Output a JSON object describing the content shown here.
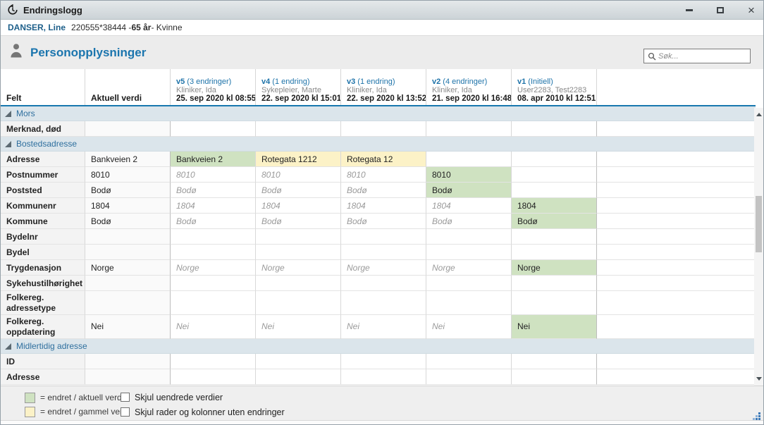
{
  "window": {
    "title": "Endringslogg",
    "close_glyph": "×"
  },
  "patient": {
    "name": "DANSER, Line",
    "id": "220555*38444 - ",
    "age": "65 år",
    "rest": " - Kvinne"
  },
  "header": {
    "title": "Personopplysninger",
    "search_placeholder": "Søk..."
  },
  "table": {
    "felt_label": "Felt",
    "aktuell_label": "Aktuell verdi",
    "version_columns": [
      {
        "version": "v5",
        "count": "(3 endringer)",
        "author": "Kliniker, Ida",
        "date": "25. sep 2020 kl 08:55"
      },
      {
        "version": "v4",
        "count": "(1 endring)",
        "author": "Sykepleier, Marte",
        "date": "22. sep 2020 kl 15:01"
      },
      {
        "version": "v3",
        "count": "(1 endring)",
        "author": "Kliniker, Ida",
        "date": "22. sep 2020 kl 13:52"
      },
      {
        "version": "v2",
        "count": "(4 endringer)",
        "author": "Kliniker, Ida",
        "date": "21. sep 2020 kl 16:48"
      },
      {
        "version": "v1",
        "count": "(Initiell)",
        "author": "User2283, Test2283",
        "date": "08. apr 2010 kl 12:51"
      }
    ],
    "rows": [
      {
        "type": "section",
        "label": "Mors"
      },
      {
        "type": "field",
        "felt": "Merknad, død",
        "aktuell": "",
        "cells": [
          {},
          {},
          {},
          {},
          {}
        ]
      },
      {
        "type": "section",
        "label": "Bostedsadresse"
      },
      {
        "type": "field",
        "felt": "Adresse",
        "aktuell": "Bankveien 2",
        "cells": [
          {
            "text": "Bankveien 2",
            "style": "new"
          },
          {
            "text": "Rotegata 1212",
            "style": "old"
          },
          {
            "text": "Rotegata 12",
            "style": "old"
          },
          {},
          {}
        ]
      },
      {
        "type": "field",
        "felt": "Postnummer",
        "aktuell": "8010",
        "cells": [
          {
            "text": "8010",
            "style": "unchanged"
          },
          {
            "text": "8010",
            "style": "unchanged"
          },
          {
            "text": "8010",
            "style": "unchanged"
          },
          {
            "text": "8010",
            "style": "new"
          },
          {}
        ]
      },
      {
        "type": "field",
        "felt": "Poststed",
        "aktuell": "Bodø",
        "cells": [
          {
            "text": "Bodø",
            "style": "unchanged"
          },
          {
            "text": "Bodø",
            "style": "unchanged"
          },
          {
            "text": "Bodø",
            "style": "unchanged"
          },
          {
            "text": "Bodø",
            "style": "new"
          },
          {}
        ]
      },
      {
        "type": "field",
        "felt": "Kommunenr",
        "aktuell": "1804",
        "cells": [
          {
            "text": "1804",
            "style": "unchanged"
          },
          {
            "text": "1804",
            "style": "unchanged"
          },
          {
            "text": "1804",
            "style": "unchanged"
          },
          {
            "text": "1804",
            "style": "unchanged"
          },
          {
            "text": "1804",
            "style": "new"
          }
        ]
      },
      {
        "type": "field",
        "felt": "Kommune",
        "aktuell": "Bodø",
        "cells": [
          {
            "text": "Bodø",
            "style": "unchanged"
          },
          {
            "text": "Bodø",
            "style": "unchanged"
          },
          {
            "text": "Bodø",
            "style": "unchanged"
          },
          {
            "text": "Bodø",
            "style": "unchanged"
          },
          {
            "text": "Bodø",
            "style": "new"
          }
        ]
      },
      {
        "type": "field",
        "felt": "Bydelnr",
        "aktuell": "",
        "cells": [
          {},
          {},
          {},
          {},
          {}
        ]
      },
      {
        "type": "field",
        "felt": "Bydel",
        "aktuell": "",
        "cells": [
          {},
          {},
          {},
          {},
          {}
        ]
      },
      {
        "type": "field",
        "felt": "Trygdenasjon",
        "aktuell": "Norge",
        "cells": [
          {
            "text": "Norge",
            "style": "unchanged"
          },
          {
            "text": "Norge",
            "style": "unchanged"
          },
          {
            "text": "Norge",
            "style": "unchanged"
          },
          {
            "text": "Norge",
            "style": "unchanged"
          },
          {
            "text": "Norge",
            "style": "new"
          }
        ]
      },
      {
        "type": "field",
        "felt": "Sykehustilhørighet",
        "aktuell": "",
        "cells": [
          {},
          {},
          {},
          {},
          {}
        ]
      },
      {
        "type": "field",
        "felt": "Folkereg. adressetype",
        "aktuell": "",
        "tall": true,
        "cells": [
          {},
          {},
          {},
          {},
          {}
        ]
      },
      {
        "type": "field",
        "felt": "Folkereg. oppdatering",
        "aktuell": "Nei",
        "tall": true,
        "cells": [
          {
            "text": "Nei",
            "style": "unchanged"
          },
          {
            "text": "Nei",
            "style": "unchanged"
          },
          {
            "text": "Nei",
            "style": "unchanged"
          },
          {
            "text": "Nei",
            "style": "unchanged"
          },
          {
            "text": "Nei",
            "style": "new"
          }
        ]
      },
      {
        "type": "section",
        "label": "Midlertidig adresse"
      },
      {
        "type": "field",
        "felt": "ID",
        "aktuell": "",
        "cells": [
          {},
          {},
          {},
          {},
          {}
        ]
      },
      {
        "type": "field",
        "felt": "Adresse",
        "aktuell": "",
        "cells": [
          {},
          {},
          {},
          {},
          {}
        ]
      }
    ]
  },
  "footer": {
    "legend": [
      {
        "swatch": "new",
        "label": "= endret / aktuell verdi"
      },
      {
        "swatch": "old",
        "label": "= endret / gammel verdi"
      }
    ],
    "checkboxes": [
      {
        "label": "Skjul uendrede verdier",
        "checked": false
      },
      {
        "label": "Skjul rader og kolonner uten endringer",
        "checked": false
      }
    ]
  },
  "colors": {
    "changed_current_bg": "#cfe2c1",
    "changed_old_bg": "#fcf2c7",
    "accent_blue": "#1878af",
    "section_bg": "#dbe5eb",
    "section_text": "#2e6f9e",
    "link_blue": "#1e73a9",
    "titlebar_bg": "#ccd3d7"
  }
}
